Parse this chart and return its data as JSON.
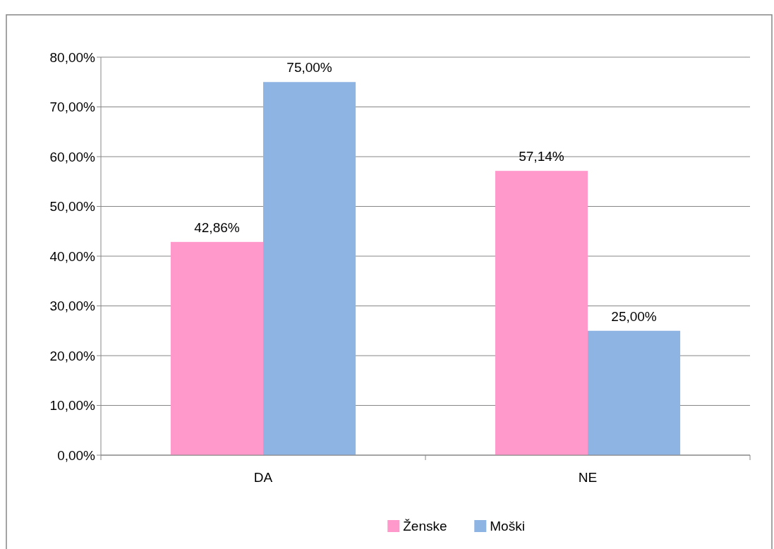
{
  "chart_data": {
    "type": "bar",
    "categories": [
      "DA",
      "NE"
    ],
    "series": [
      {
        "name": "Ženske",
        "color": "#ff99cc",
        "values": [
          42.86,
          57.14
        ],
        "value_labels": [
          "42,86%",
          "57,14%"
        ]
      },
      {
        "name": "Moški",
        "color": "#8eb4e3",
        "values": [
          75,
          25
        ],
        "value_labels": [
          "75,00%",
          "25,00%"
        ]
      }
    ],
    "ylim": [
      0,
      80
    ],
    "yticks": [
      {
        "value": 0,
        "label": "0,00%"
      },
      {
        "value": 10,
        "label": "10,00%"
      },
      {
        "value": 20,
        "label": "20,00%"
      },
      {
        "value": 30,
        "label": "30,00%"
      },
      {
        "value": 40,
        "label": "40,00%"
      },
      {
        "value": 50,
        "label": "50,00%"
      },
      {
        "value": 60,
        "label": "60,00%"
      },
      {
        "value": 70,
        "label": "70,00%"
      },
      {
        "value": 80,
        "label": "80,00%"
      }
    ],
    "grid": "y",
    "legend": "bottom"
  }
}
